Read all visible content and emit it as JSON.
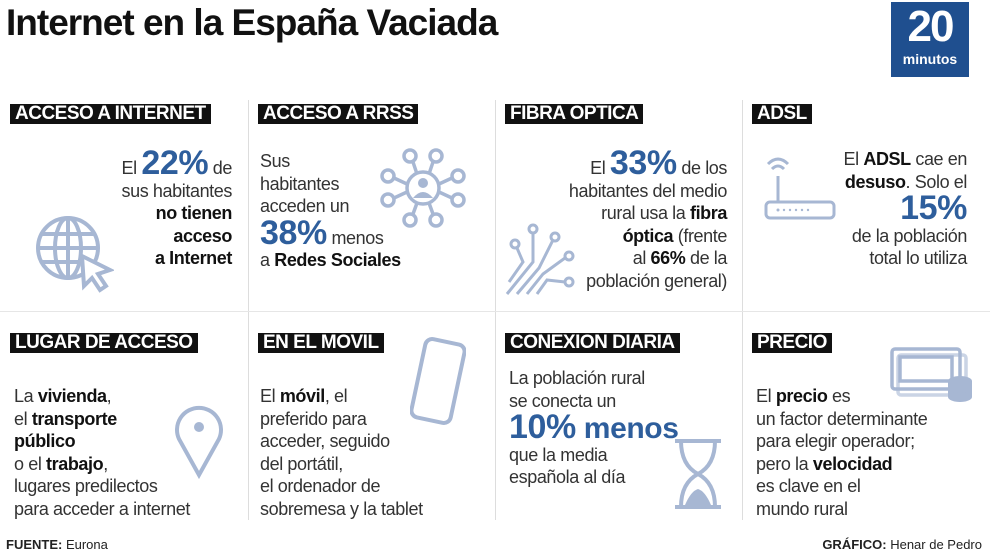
{
  "title": "Internet en la España Vaciada",
  "logo": {
    "number": "20",
    "word": "minutos"
  },
  "colors": {
    "accent": "#2e5e9c",
    "icon": "#a7b7d3",
    "logo": "#1f4f8f"
  },
  "cells": [
    {
      "label": "ACCESO A INTERNET",
      "icon": "globe-cursor-icon",
      "lines": [
        [
          {
            "t": "El ",
            "s": "n"
          },
          {
            "t": "22%",
            "s": "h"
          },
          {
            "t": " de",
            "s": "n"
          }
        ],
        [
          {
            "t": "sus habitantes",
            "s": "n"
          }
        ],
        [
          {
            "t": "no tienen",
            "s": "b"
          }
        ],
        [
          {
            "t": "acceso",
            "s": "b"
          }
        ],
        [
          {
            "t": "a Internet",
            "s": "b"
          }
        ]
      ]
    },
    {
      "label": "ACCESO A RRSS",
      "icon": "social-network-icon",
      "lines": [
        [
          {
            "t": "Sus",
            "s": "n"
          }
        ],
        [
          {
            "t": "habitantes",
            "s": "n"
          }
        ],
        [
          {
            "t": "acceden un",
            "s": "n"
          }
        ],
        [
          {
            "t": "38%",
            "s": "h"
          },
          {
            "t": " menos",
            "s": "n"
          }
        ],
        [
          {
            "t": "a ",
            "s": "n"
          },
          {
            "t": "Redes Sociales",
            "s": "b"
          }
        ]
      ]
    },
    {
      "label": "FIBRA OPTICA",
      "icon": "fiber-optic-icon",
      "lines": [
        [
          {
            "t": "El ",
            "s": "n"
          },
          {
            "t": "33%",
            "s": "h"
          },
          {
            "t": " de los",
            "s": "n"
          }
        ],
        [
          {
            "t": "habitantes del medio",
            "s": "n"
          }
        ],
        [
          {
            "t": "rural usa la ",
            "s": "n"
          },
          {
            "t": "fibra",
            "s": "b"
          }
        ],
        [
          {
            "t": "óptica",
            "s": "b"
          },
          {
            "t": " (frente",
            "s": "n"
          }
        ],
        [
          {
            "t": "al ",
            "s": "n"
          },
          {
            "t": "66%",
            "s": "b"
          },
          {
            "t": " de la",
            "s": "n"
          }
        ],
        [
          {
            "t": "población general)",
            "s": "n"
          }
        ]
      ]
    },
    {
      "label": "ADSL",
      "icon": "router-icon",
      "lines": [
        [
          {
            "t": "El ",
            "s": "n"
          },
          {
            "t": "ADSL",
            "s": "b"
          },
          {
            "t": " cae en",
            "s": "n"
          }
        ],
        [
          {
            "t": "desuso",
            "s": "b"
          },
          {
            "t": ". Solo el",
            "s": "n"
          }
        ],
        [
          {
            "t": "15%",
            "s": "h"
          }
        ],
        [
          {
            "t": "de la población",
            "s": "n"
          }
        ],
        [
          {
            "t": "total lo utiliza",
            "s": "n"
          }
        ]
      ]
    },
    {
      "label": "LUGAR DE ACCESO",
      "icon": "location-pin-icon",
      "lines": [
        [
          {
            "t": "La ",
            "s": "n"
          },
          {
            "t": "vivienda",
            "s": "b"
          },
          {
            "t": ",",
            "s": "n"
          }
        ],
        [
          {
            "t": "el ",
            "s": "n"
          },
          {
            "t": "transporte",
            "s": "b"
          }
        ],
        [
          {
            "t": "público",
            "s": "b"
          }
        ],
        [
          {
            "t": "o el ",
            "s": "n"
          },
          {
            "t": "trabajo",
            "s": "b"
          },
          {
            "t": ",",
            "s": "n"
          }
        ],
        [
          {
            "t": "lugares predilectos",
            "s": "n"
          }
        ],
        [
          {
            "t": "para acceder a internet",
            "s": "n"
          }
        ]
      ]
    },
    {
      "label": "EN EL MOVIL",
      "icon": "smartphone-icon",
      "lines": [
        [
          {
            "t": "El ",
            "s": "n"
          },
          {
            "t": "móvil",
            "s": "b"
          },
          {
            "t": ", el",
            "s": "n"
          }
        ],
        [
          {
            "t": "preferido para",
            "s": "n"
          }
        ],
        [
          {
            "t": "acceder, seguido",
            "s": "n"
          }
        ],
        [
          {
            "t": "del portátil,",
            "s": "n"
          }
        ],
        [
          {
            "t": "el ordenador de",
            "s": "n"
          }
        ],
        [
          {
            "t": "sobremesa y la tablet",
            "s": "n"
          }
        ]
      ]
    },
    {
      "label": "CONEXION DIARIA",
      "icon": "hourglass-icon",
      "lines": [
        [
          {
            "t": "La población rural",
            "s": "n"
          }
        ],
        [
          {
            "t": "se conecta un",
            "s": "n"
          }
        ],
        [
          {
            "t": "10%",
            "s": "h"
          },
          {
            "t": " menos",
            "s": "hs"
          }
        ],
        [
          {
            "t": "que la media",
            "s": "n"
          }
        ],
        [
          {
            "t": "española al día",
            "s": "n"
          }
        ]
      ]
    },
    {
      "label": "PRECIO",
      "icon": "money-icon",
      "lines": [
        [
          {
            "t": "El ",
            "s": "n"
          },
          {
            "t": "precio",
            "s": "b"
          },
          {
            "t": " es",
            "s": "n"
          }
        ],
        [
          {
            "t": "un factor determinante",
            "s": "n"
          }
        ],
        [
          {
            "t": "para elegir operador;",
            "s": "n"
          }
        ],
        [
          {
            "t": "pero la ",
            "s": "n"
          },
          {
            "t": "velocidad",
            "s": "b"
          }
        ],
        [
          {
            "t": "es clave en el",
            "s": "n"
          }
        ],
        [
          {
            "t": "mundo rural",
            "s": "n"
          }
        ]
      ]
    }
  ],
  "footer": {
    "source_label": "FUENTE:",
    "source": " Eurona",
    "credit_label": "GRÁFICO:",
    "credit": " Henar de Pedro"
  }
}
